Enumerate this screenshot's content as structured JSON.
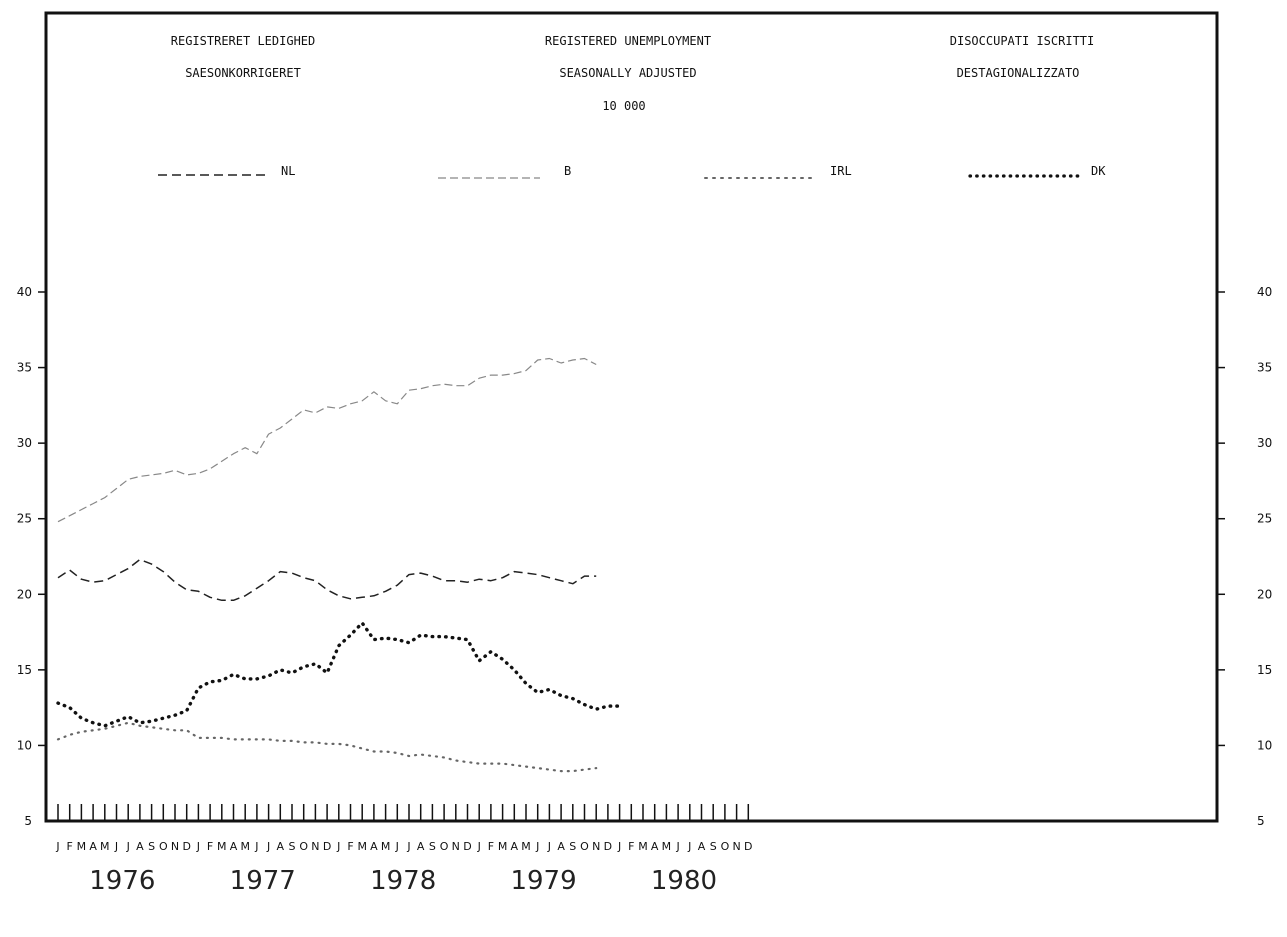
{
  "header": {
    "danish": [
      "REGISTRERET LEDIGHED",
      "SAESONKORRIGERET"
    ],
    "english": [
      "REGISTERED UNEMPLOYMENT",
      "SEASONALLY ADJUSTED",
      "10 000"
    ],
    "italian": [
      "DISOCCUPATI ISCRITTI",
      "DESTAGIONALIZZATO"
    ]
  },
  "chart_data": {
    "type": "line",
    "ylim": [
      5,
      40
    ],
    "y_ticks": [
      5,
      10,
      15,
      20,
      25,
      30,
      35,
      40
    ],
    "month_labels": [
      "J",
      "F",
      "M",
      "A",
      "M",
      "J",
      "J",
      "A",
      "S",
      "O",
      "N",
      "D"
    ],
    "years": [
      "1976",
      "1977",
      "1978",
      "1979",
      "1980"
    ],
    "grid": false,
    "legend_position": "top",
    "series": [
      {
        "name": "NL",
        "style": "dashed",
        "color": "#222222",
        "values": [
          21.1,
          21.6,
          21.0,
          20.8,
          20.9,
          21.3,
          21.7,
          22.3,
          22.0,
          21.5,
          20.8,
          20.3,
          20.2,
          19.8,
          19.6,
          19.6,
          19.9,
          20.4,
          20.9,
          21.5,
          21.4,
          21.1,
          20.9,
          20.3,
          19.9,
          19.7,
          19.8,
          19.9,
          20.2,
          20.6,
          21.3,
          21.4,
          21.2,
          20.9,
          20.9,
          20.8,
          21.0,
          20.9,
          21.1,
          21.5,
          21.4,
          21.3,
          21.1,
          20.9,
          20.7,
          21.2,
          21.2
        ]
      },
      {
        "name": "B",
        "style": "dashed",
        "color": "#888888",
        "values": [
          24.8,
          25.2,
          25.6,
          26.0,
          26.4,
          27.0,
          27.6,
          27.8,
          27.9,
          28.0,
          28.2,
          27.9,
          28.0,
          28.3,
          28.8,
          29.3,
          29.7,
          29.3,
          30.6,
          31.0,
          31.6,
          32.2,
          32.0,
          32.4,
          32.3,
          32.6,
          32.8,
          33.4,
          32.8,
          32.6,
          33.5,
          33.6,
          33.8,
          33.9,
          33.8,
          33.8,
          34.3,
          34.5,
          34.5,
          34.6,
          34.8,
          35.5,
          35.6,
          35.3,
          35.5,
          35.6,
          35.2
        ]
      },
      {
        "name": "IRL",
        "style": "dotted",
        "color": "#666666",
        "values": [
          10.4,
          10.7,
          10.9,
          11.0,
          11.1,
          11.3,
          11.5,
          11.3,
          11.2,
          11.1,
          11.0,
          11.0,
          10.5,
          10.5,
          10.5,
          10.4,
          10.4,
          10.4,
          10.4,
          10.3,
          10.3,
          10.2,
          10.2,
          10.1,
          10.1,
          10.0,
          9.8,
          9.6,
          9.6,
          9.5,
          9.3,
          9.4,
          9.3,
          9.2,
          9.0,
          8.9,
          8.8,
          8.8,
          8.8,
          8.7,
          8.6,
          8.5,
          8.4,
          8.3,
          8.3,
          8.4,
          8.5
        ]
      },
      {
        "name": "DK",
        "style": "dotted-heavy",
        "color": "#111111",
        "values": [
          12.8,
          12.5,
          11.8,
          11.5,
          11.3,
          11.6,
          11.9,
          11.5,
          11.6,
          11.8,
          12.0,
          12.3,
          13.8,
          14.2,
          14.3,
          14.7,
          14.4,
          14.4,
          14.6,
          15.0,
          14.8,
          15.2,
          15.4,
          14.8,
          16.6,
          17.3,
          18.1,
          17.0,
          17.1,
          17.0,
          16.8,
          17.3,
          17.2,
          17.2,
          17.1,
          17.0,
          15.6,
          16.2,
          15.7,
          15.0,
          14.1,
          13.5,
          13.7,
          13.3,
          13.1,
          12.7,
          12.4,
          12.6,
          12.6
        ]
      }
    ]
  }
}
